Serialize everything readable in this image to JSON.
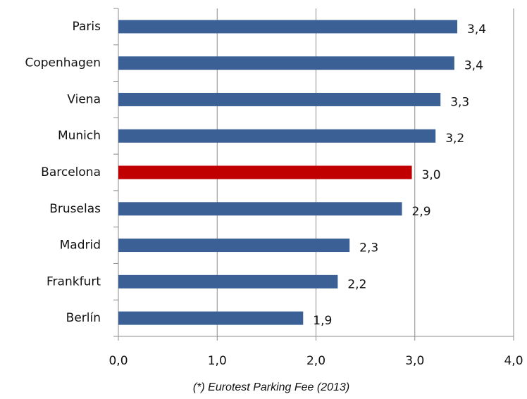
{
  "chart_data": {
    "type": "bar",
    "orientation": "horizontal",
    "categories": [
      "Paris",
      "Copenhagen",
      "Viena",
      "Munich",
      "Barcelona",
      "Bruselas",
      "Madrid",
      "Frankfurt",
      "Berlín"
    ],
    "values": [
      3.43,
      3.4,
      3.26,
      3.21,
      2.97,
      2.87,
      2.34,
      2.22,
      1.87
    ],
    "value_labels": [
      "3,4",
      "3,4",
      "3,3",
      "3,2",
      "3,0",
      "2,9",
      "2,3",
      "2,2",
      "1,9"
    ],
    "colors": [
      "#3a6096",
      "#3a6096",
      "#3a6096",
      "#3a6096",
      "#c00000",
      "#3a6096",
      "#3a6096",
      "#3a6096",
      "#3a6096"
    ],
    "xlim": [
      0,
      4
    ],
    "xticks": [
      {
        "value": 0,
        "label": "0,0"
      },
      {
        "value": 1,
        "label": "1,0"
      },
      {
        "value": 2,
        "label": "2,0"
      },
      {
        "value": 3,
        "label": "3,0"
      },
      {
        "value": 4,
        "label": "4,0"
      }
    ],
    "grid": true,
    "annotation": "(*) Eurotest Parking Fee (2013)"
  }
}
